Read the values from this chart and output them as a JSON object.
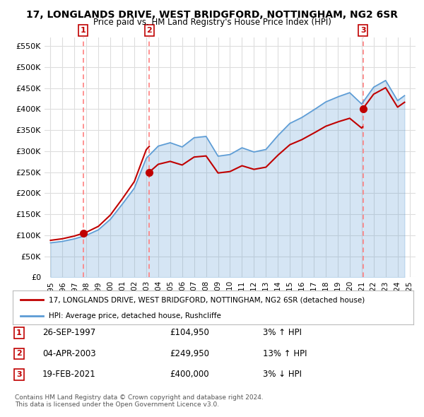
{
  "title": "17, LONGLANDS DRIVE, WEST BRIDGFORD, NOTTINGHAM, NG2 6SR",
  "subtitle": "Price paid vs. HM Land Registry's House Price Index (HPI)",
  "xlim": [
    1994.5,
    2025.5
  ],
  "ylim": [
    0,
    570000
  ],
  "yticks": [
    0,
    50000,
    100000,
    150000,
    200000,
    250000,
    300000,
    350000,
    400000,
    450000,
    500000,
    550000
  ],
  "ytick_labels": [
    "£0",
    "£50K",
    "£100K",
    "£150K",
    "£200K",
    "£250K",
    "£300K",
    "£350K",
    "£400K",
    "£450K",
    "£500K",
    "£550K"
  ],
  "xtick_years": [
    1995,
    1996,
    1997,
    1998,
    1999,
    2000,
    2001,
    2002,
    2003,
    2004,
    2005,
    2006,
    2007,
    2008,
    2009,
    2010,
    2011,
    2012,
    2013,
    2014,
    2015,
    2016,
    2017,
    2018,
    2019,
    2020,
    2021,
    2022,
    2023,
    2024,
    2025
  ],
  "sales": [
    {
      "date": 1997.73,
      "price": 104950,
      "label": "1"
    },
    {
      "date": 2003.25,
      "price": 249950,
      "label": "2"
    },
    {
      "date": 2021.12,
      "price": 400000,
      "label": "3"
    }
  ],
  "hpi_line_color": "#5b9bd5",
  "sale_line_color": "#c00000",
  "sale_dot_color": "#c00000",
  "vline_color": "#ff8080",
  "legend_sale_label": "17, LONGLANDS DRIVE, WEST BRIDGFORD, NOTTINGHAM, NG2 6SR (detached house)",
  "legend_hpi_label": "HPI: Average price, detached house, Rushcliffe",
  "table_rows": [
    {
      "num": "1",
      "date": "26-SEP-1997",
      "price": "£104,950",
      "hpi": "3% ↑ HPI"
    },
    {
      "num": "2",
      "date": "04-APR-2003",
      "price": "£249,950",
      "hpi": "13% ↑ HPI"
    },
    {
      "num": "3",
      "date": "19-FEB-2021",
      "price": "£400,000",
      "hpi": "3% ↓ HPI"
    }
  ],
  "footnote": "Contains HM Land Registry data © Crown copyright and database right 2024.\nThis data is licensed under the Open Government Licence v3.0.",
  "background_color": "#ffffff",
  "grid_color": "#dddddd"
}
